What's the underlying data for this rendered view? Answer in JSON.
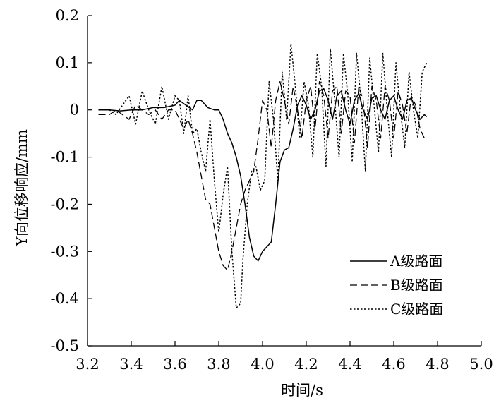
{
  "chart_data": {
    "type": "line",
    "title": "",
    "xlabel": "时间/s",
    "ylabel": "Y向位移响应/mm",
    "xlim": [
      3.2,
      5.0
    ],
    "ylim": [
      -0.5,
      0.2
    ],
    "xticks": [
      "3.2",
      "3.4",
      "3.6",
      "3.8",
      "4.0",
      "4.2",
      "4.4",
      "4.6",
      "4.8",
      "5.0"
    ],
    "yticks": [
      "0.2",
      "0.1",
      "0",
      "-0.1",
      "-0.2",
      "-0.3",
      "-0.4",
      "-0.5"
    ],
    "grid": false,
    "legend_position": "bottom-right",
    "series": [
      {
        "name": "A级路面",
        "dash": "solid",
        "x": [
          3.25,
          3.3,
          3.35,
          3.4,
          3.45,
          3.5,
          3.55,
          3.6,
          3.62,
          3.65,
          3.68,
          3.7,
          3.72,
          3.75,
          3.78,
          3.8,
          3.82,
          3.84,
          3.86,
          3.88,
          3.9,
          3.92,
          3.94,
          3.96,
          3.98,
          4.0,
          4.02,
          4.04,
          4.06,
          4.08,
          4.1,
          4.12,
          4.14,
          4.16,
          4.18,
          4.2,
          4.22,
          4.24,
          4.26,
          4.28,
          4.3,
          4.32,
          4.34,
          4.36,
          4.38,
          4.4,
          4.42,
          4.44,
          4.46,
          4.48,
          4.5,
          4.52,
          4.54,
          4.56,
          4.58,
          4.6,
          4.62,
          4.64,
          4.66,
          4.68,
          4.7,
          4.72,
          4.74,
          4.75
        ],
        "y": [
          0.0,
          0.0,
          -0.002,
          0.0,
          0.0,
          0.005,
          0.005,
          0.01,
          0.02,
          0.01,
          0.0,
          0.02,
          0.02,
          0.005,
          0.0,
          0.0,
          -0.02,
          -0.05,
          -0.07,
          -0.1,
          -0.14,
          -0.2,
          -0.27,
          -0.31,
          -0.32,
          -0.3,
          -0.29,
          -0.28,
          -0.2,
          -0.11,
          -0.085,
          -0.08,
          -0.04,
          0.01,
          0.03,
          0.01,
          -0.02,
          0.0,
          0.04,
          0.045,
          0.02,
          -0.02,
          0.03,
          0.04,
          0.0,
          -0.03,
          0.02,
          0.035,
          0.0,
          -0.02,
          0.025,
          0.03,
          0.0,
          -0.02,
          0.02,
          0.03,
          0.0,
          -0.02,
          0.02,
          0.025,
          0.0,
          -0.02,
          -0.01,
          -0.015
        ]
      },
      {
        "name": "B级路面",
        "dash": "dashed",
        "x": [
          3.25,
          3.3,
          3.33,
          3.36,
          3.39,
          3.42,
          3.45,
          3.48,
          3.51,
          3.54,
          3.57,
          3.6,
          3.62,
          3.64,
          3.66,
          3.68,
          3.7,
          3.72,
          3.74,
          3.76,
          3.78,
          3.8,
          3.82,
          3.84,
          3.86,
          3.88,
          3.9,
          3.92,
          3.94,
          3.96,
          3.98,
          4.0,
          4.02,
          4.04,
          4.06,
          4.08,
          4.1,
          4.12,
          4.14,
          4.16,
          4.18,
          4.2,
          4.22,
          4.24,
          4.26,
          4.28,
          4.3,
          4.32,
          4.34,
          4.36,
          4.38,
          4.4,
          4.42,
          4.44,
          4.46,
          4.48,
          4.5,
          4.52,
          4.54,
          4.56,
          4.58,
          4.6,
          4.62,
          4.64,
          4.66,
          4.68,
          4.7,
          4.72,
          4.74
        ],
        "y": [
          -0.01,
          -0.01,
          0.0,
          -0.01,
          -0.02,
          0.01,
          0.0,
          -0.01,
          0.0,
          -0.02,
          0.0,
          0.0,
          -0.02,
          -0.04,
          -0.02,
          -0.05,
          -0.09,
          -0.14,
          -0.19,
          -0.2,
          -0.25,
          -0.3,
          -0.33,
          -0.34,
          -0.3,
          -0.25,
          -0.2,
          -0.17,
          -0.15,
          -0.13,
          -0.06,
          0.02,
          0.0,
          -0.08,
          0.02,
          0.06,
          0.02,
          -0.03,
          0.05,
          0.0,
          -0.06,
          0.02,
          0.05,
          -0.04,
          0.06,
          0.03,
          -0.06,
          0.04,
          0.05,
          -0.05,
          0.04,
          0.03,
          -0.07,
          0.05,
          0.02,
          -0.08,
          0.05,
          0.02,
          -0.06,
          0.05,
          0.02,
          -0.06,
          0.04,
          0.01,
          -0.05,
          0.03,
          0.01,
          -0.04,
          -0.06
        ]
      },
      {
        "name": "C级路面",
        "dash": "dotted",
        "x": [
          3.25,
          3.3,
          3.33,
          3.36,
          3.39,
          3.42,
          3.45,
          3.48,
          3.51,
          3.54,
          3.57,
          3.6,
          3.62,
          3.64,
          3.66,
          3.68,
          3.7,
          3.72,
          3.74,
          3.76,
          3.78,
          3.8,
          3.82,
          3.84,
          3.86,
          3.88,
          3.9,
          3.91,
          3.93,
          3.95,
          3.97,
          3.99,
          4.01,
          4.03,
          4.05,
          4.07,
          4.09,
          4.11,
          4.13,
          4.15,
          4.17,
          4.19,
          4.21,
          4.23,
          4.25,
          4.27,
          4.29,
          4.31,
          4.33,
          4.35,
          4.37,
          4.39,
          4.41,
          4.43,
          4.45,
          4.47,
          4.49,
          4.51,
          4.53,
          4.55,
          4.57,
          4.59,
          4.61,
          4.63,
          4.65,
          4.67,
          4.69,
          4.71,
          4.73,
          4.75
        ],
        "y": [
          0.0,
          0.0,
          -0.01,
          0.01,
          0.03,
          -0.03,
          0.04,
          0.0,
          -0.03,
          0.05,
          -0.02,
          0.03,
          0.02,
          -0.05,
          0.03,
          -0.05,
          -0.04,
          -0.09,
          -0.13,
          -0.02,
          -0.15,
          -0.26,
          -0.18,
          -0.12,
          -0.3,
          -0.42,
          -0.41,
          -0.32,
          -0.2,
          -0.13,
          -0.12,
          -0.17,
          -0.15,
          0.06,
          -0.02,
          -0.15,
          0.08,
          -0.02,
          0.14,
          0.05,
          -0.06,
          0.06,
          0.01,
          -0.1,
          0.12,
          0.05,
          -0.12,
          0.13,
          0.02,
          -0.1,
          0.12,
          0.03,
          -0.11,
          0.12,
          0.02,
          -0.13,
          0.11,
          0.01,
          -0.09,
          0.12,
          0.0,
          -0.1,
          0.1,
          0.0,
          -0.08,
          0.08,
          0.0,
          -0.06,
          0.08,
          0.1
        ]
      }
    ]
  }
}
